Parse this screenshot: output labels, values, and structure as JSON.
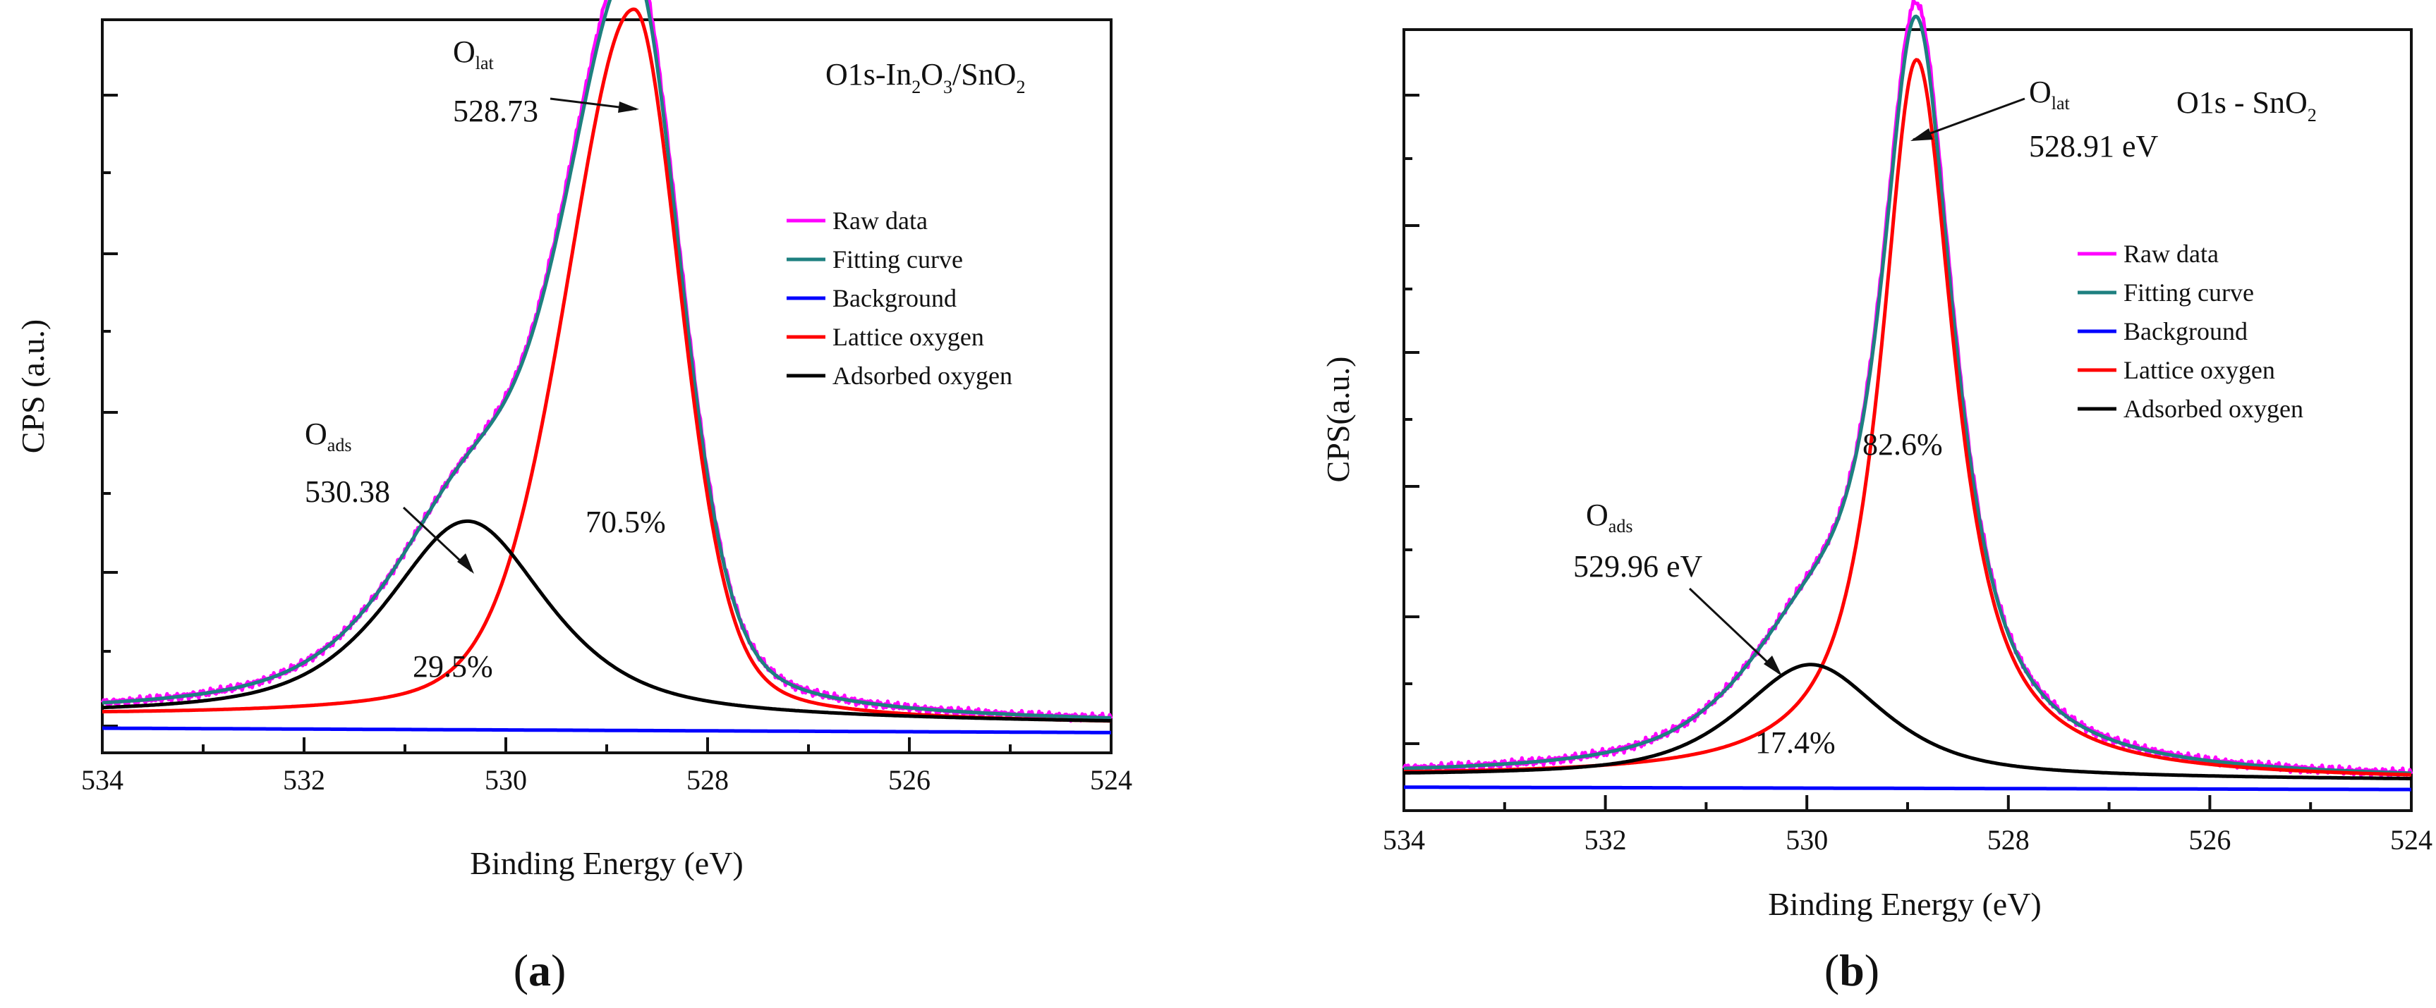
{
  "chart_data": [
    {
      "panel": "a",
      "type": "line",
      "title": "O1s-In2O3/SnO2",
      "title_parts": {
        "main": "O1s-In",
        "sub1": "2",
        "mid": "O",
        "sub2": "3",
        "mid2": "/SnO",
        "sub3": "2"
      },
      "xlabel": "Binding Energy (eV)",
      "ylabel": "CPS (a.u.)",
      "panel_label": {
        "open": "(",
        "letter": "a",
        "close": ")"
      },
      "xlim": [
        534,
        524
      ],
      "xticks": [
        "534",
        "532",
        "530",
        "528",
        "526",
        "524"
      ],
      "ylim": [
        0,
        100
      ],
      "series": [
        {
          "name": "Raw data",
          "color": "#ff00ff",
          "kind": "raw"
        },
        {
          "name": "Fitting curve",
          "color": "#1e8080",
          "kind": "fit"
        },
        {
          "name": "Background",
          "color": "#0000ff",
          "kind": "bg"
        },
        {
          "name": "Lattice oxygen",
          "color": "#ff0000",
          "kind": "lat"
        },
        {
          "name": "Adsorbed oxygen",
          "color": "#000000",
          "kind": "ads"
        }
      ],
      "peaks": {
        "lattice": {
          "center": 528.73,
          "height": 97,
          "fwhm_left": 1.6,
          "fwhm_right": 1.1,
          "mix": 0.3
        },
        "adsorbed": {
          "center": 530.38,
          "height": 27,
          "fwhm": 1.9,
          "mix": 0.7
        }
      },
      "background": {
        "start": 4,
        "end": 3
      },
      "annotations": {
        "lattice_symbol": "O",
        "lattice_sub": "lat",
        "lattice_value": "528.73",
        "adsorbed_symbol": "O",
        "adsorbed_sub": "ads",
        "adsorbed_value": "530.38",
        "lattice_pct": "70.5%",
        "adsorbed_pct": "29.5%"
      }
    },
    {
      "panel": "b",
      "type": "line",
      "title": "O1s - SnO2",
      "title_parts": {
        "main": "O1s - SnO",
        "sub1": "2"
      },
      "xlabel": "Binding Energy (eV)",
      "ylabel": "CPS(a.u.)",
      "panel_label": {
        "open": "(",
        "letter": "b",
        "close": ")"
      },
      "xlim": [
        534,
        524
      ],
      "xticks": [
        "534",
        "532",
        "530",
        "528",
        "526",
        "524"
      ],
      "ylim": [
        0,
        100
      ],
      "series": [
        {
          "name": "Raw data",
          "color": "#ff00ff",
          "kind": "raw"
        },
        {
          "name": "Fitting curve",
          "color": "#1e8080",
          "kind": "fit"
        },
        {
          "name": "Background",
          "color": "#0000ff",
          "kind": "bg"
        },
        {
          "name": "Lattice oxygen",
          "color": "#ff0000",
          "kind": "lat"
        },
        {
          "name": "Adsorbed oxygen",
          "color": "#000000",
          "kind": "ads"
        }
      ],
      "peaks": {
        "lattice": {
          "center": 528.91,
          "height": 92,
          "fwhm_left": 0.85,
          "fwhm_right": 0.9,
          "mix": 0.9
        },
        "adsorbed": {
          "center": 529.96,
          "height": 14.5,
          "fwhm": 1.7,
          "mix": 0.7
        }
      },
      "background": {
        "start": 3.5,
        "end": 3
      },
      "annotations": {
        "lattice_symbol": "O",
        "lattice_sub": "lat",
        "lattice_value": "528.91 eV",
        "adsorbed_symbol": "O",
        "adsorbed_sub": "ads",
        "adsorbed_value": "529.96 eV",
        "lattice_pct": "82.6%",
        "adsorbed_pct": "17.4%"
      }
    }
  ]
}
